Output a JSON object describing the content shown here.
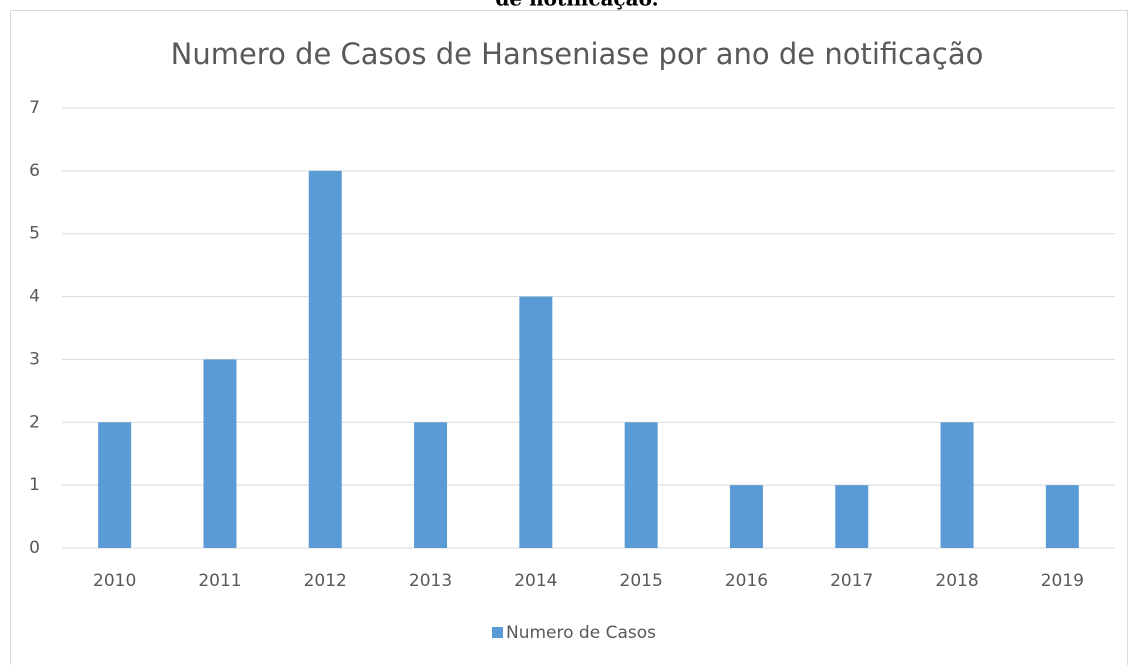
{
  "caption": "de notificação.",
  "chart_data": {
    "type": "bar",
    "title": "Numero de Casos de Hanseniase por ano de notificação",
    "categories": [
      "2010",
      "2011",
      "2012",
      "2013",
      "2014",
      "2015",
      "2016",
      "2017",
      "2018",
      "2019"
    ],
    "series": [
      {
        "name": "Numero de Casos",
        "color": "#5b9bd5",
        "values": [
          2,
          3,
          6,
          2,
          4,
          2,
          1,
          1,
          2,
          1
        ]
      }
    ],
    "ylim": [
      0,
      7
    ],
    "yticks": [
      0,
      1,
      2,
      3,
      4,
      5,
      6,
      7
    ],
    "grid": true,
    "legend": "bottom"
  }
}
